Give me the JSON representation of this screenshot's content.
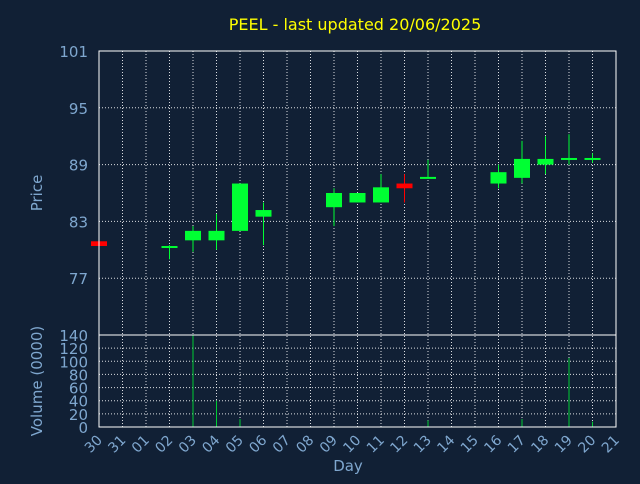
{
  "chart_data": {
    "type": "candlestick",
    "title": "PEEL - last updated 20/06/2025",
    "price_axis": {
      "label": "Price",
      "ylim": [
        71,
        101
      ],
      "ticks": [
        101,
        95,
        89,
        83,
        77
      ]
    },
    "volume_axis": {
      "label": "Volume (0000)",
      "ylim": [
        0,
        140
      ],
      "ticks": [
        140,
        120,
        100,
        80,
        60,
        40,
        20,
        0
      ]
    },
    "x_axis": {
      "label": "Day",
      "ticks": [
        "30",
        "31",
        "01",
        "02",
        "03",
        "04",
        "05",
        "06",
        "07",
        "08",
        "09",
        "10",
        "11",
        "12",
        "13",
        "14",
        "15",
        "16",
        "17",
        "18",
        "19",
        "20",
        "21"
      ]
    },
    "grid": true,
    "colors": {
      "background": "#112035",
      "up": "#00ff33",
      "down": "#ff0000",
      "text": "#7fa7cf",
      "title": "#ffff00",
      "grid": "#ffffff",
      "volume": "#00cc33"
    },
    "candles": [
      {
        "day": "30",
        "open": 80.9,
        "high": 80.9,
        "low": 80.4,
        "close": 80.4,
        "volume": 0
      },
      {
        "day": "02",
        "open": 80.3,
        "high": 80.5,
        "low": 79.0,
        "close": 80.4,
        "volume": 0
      },
      {
        "day": "03",
        "open": 81.0,
        "high": 82.5,
        "low": 79.8,
        "close": 82.0,
        "volume": 140
      },
      {
        "day": "04",
        "open": 81.0,
        "high": 83.8,
        "low": 80.0,
        "close": 82.0,
        "volume": 40
      },
      {
        "day": "05",
        "open": 82.0,
        "high": 87.0,
        "low": 82.0,
        "close": 87.0,
        "volume": 12
      },
      {
        "day": "06",
        "open": 83.5,
        "high": 85.0,
        "low": 80.5,
        "close": 84.2,
        "volume": 0
      },
      {
        "day": "09",
        "open": 84.5,
        "high": 86.5,
        "low": 82.5,
        "close": 86.0,
        "volume": 0
      },
      {
        "day": "10",
        "open": 85.0,
        "high": 86.0,
        "low": 85.0,
        "close": 86.0,
        "volume": 0
      },
      {
        "day": "11",
        "open": 85.0,
        "high": 88.0,
        "low": 85.0,
        "close": 86.6,
        "volume": 0
      },
      {
        "day": "12",
        "open": 87.0,
        "high": 88.0,
        "low": 85.0,
        "close": 86.5,
        "volume": 0
      },
      {
        "day": "13",
        "open": 87.5,
        "high": 89.5,
        "low": 87.5,
        "close": 87.7,
        "volume": 10
      },
      {
        "day": "16",
        "open": 87.0,
        "high": 89.0,
        "low": 86.5,
        "close": 88.2,
        "volume": 0
      },
      {
        "day": "17",
        "open": 87.6,
        "high": 91.5,
        "low": 87.0,
        "close": 89.6,
        "volume": 12
      },
      {
        "day": "18",
        "open": 89.0,
        "high": 92.0,
        "low": 88.0,
        "close": 89.6,
        "volume": 0
      },
      {
        "day": "19",
        "open": 89.5,
        "high": 92.2,
        "low": 89.0,
        "close": 89.7,
        "volume": 105
      },
      {
        "day": "20",
        "open": 89.5,
        "high": 90.2,
        "low": 89.2,
        "close": 89.7,
        "volume": 8
      }
    ]
  }
}
